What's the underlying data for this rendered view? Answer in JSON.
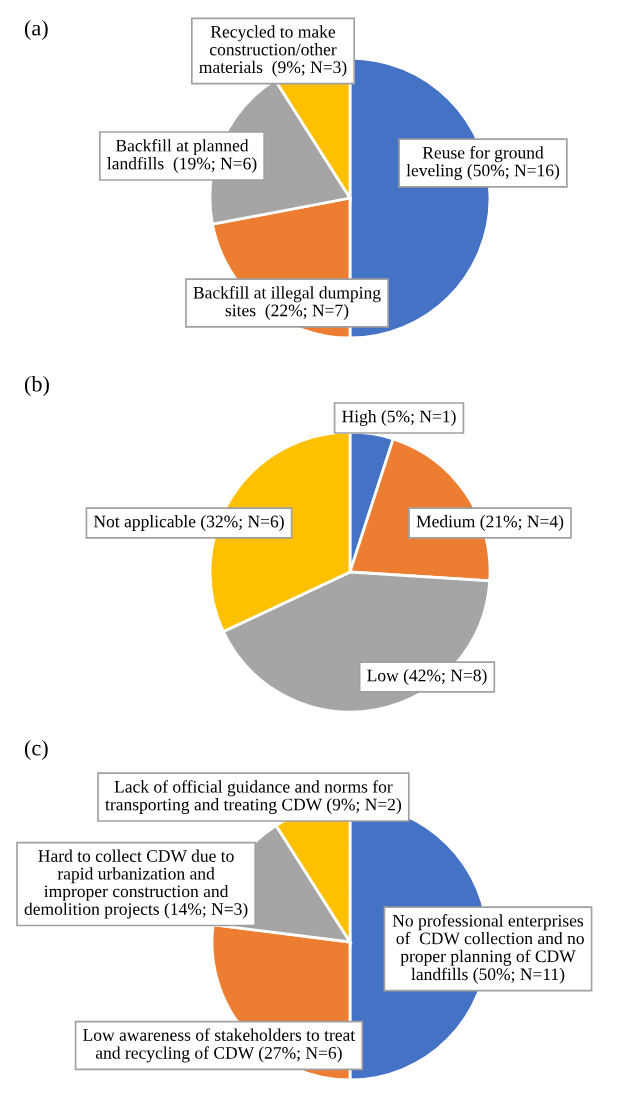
{
  "chart_data": [
    {
      "type": "pie",
      "title": "(a)",
      "categories": [
        "Reuse for ground\nleveling (50%; N=16)",
        "Backfill at illegal dumping\nsites  (22%; N=7)",
        "Backfill at planned\nlandfills  (19%; N=6)",
        "Recycled to make\nconstruction/other\nmaterials  (9%; N=3)"
      ],
      "values": [
        50,
        22,
        19,
        9
      ],
      "colors": [
        "#4472c4",
        "#ed7d31",
        "#a5a5a5",
        "#ffc000"
      ]
    },
    {
      "type": "pie",
      "title": "(b)",
      "categories": [
        "High (5%; N=1)",
        "Medium (21%; N=4)",
        "Low (42%; N=8)",
        "Not applicable (32%; N=6)"
      ],
      "values": [
        5,
        21,
        42,
        32
      ],
      "colors": [
        "#4472c4",
        "#ed7d31",
        "#a5a5a5",
        "#ffc000"
      ]
    },
    {
      "type": "pie",
      "title": "(c)",
      "categories": [
        "No professional enterprises\n of  CDW collection and no\nproper planning of CDW\nlandfills (50%; N=11)",
        "Low awareness of stakeholders to treat\nand recycling of CDW (27%; N=6)",
        "Hard to collect CDW due to\nrapid urbanization and\nimproper construction and\ndemolition projects (14%; N=3)",
        "Lack of official guidance and norms for\ntransporting and treating CDW (9%; N=2)"
      ],
      "values": [
        50,
        27,
        14,
        9
      ],
      "colors": [
        "#4472c4",
        "#ed7d31",
        "#a5a5a5",
        "#ffc000"
      ]
    }
  ]
}
